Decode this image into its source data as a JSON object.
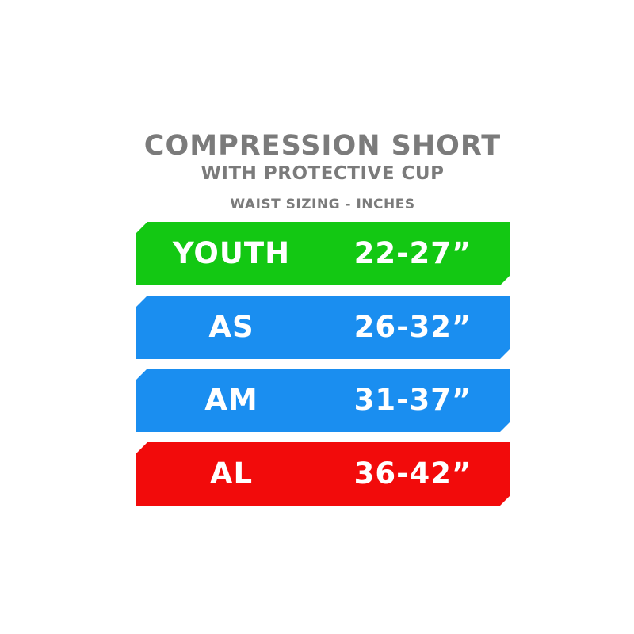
{
  "title": "COMPRESSION SHORT",
  "subtitle": "WITH PROTECTIVE CUP",
  "caption": "WAIST SIZING - INCHES",
  "sizes": [
    {
      "label": "YOUTH",
      "range": "22-27”",
      "color": "#13c813"
    },
    {
      "label": "AS",
      "range": "26-32”",
      "color": "#1a8ef0"
    },
    {
      "label": "AM",
      "range": "31-37”",
      "color": "#1a8ef0"
    },
    {
      "label": "AL",
      "range": "36-42”",
      "color": "#f20b0b"
    }
  ]
}
